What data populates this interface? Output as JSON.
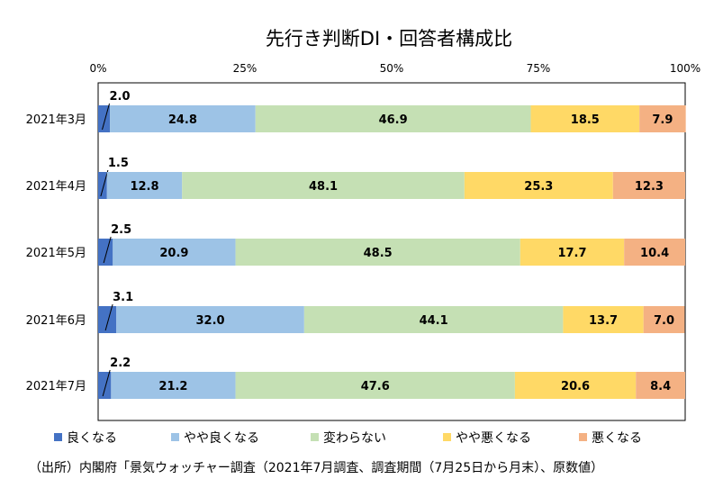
{
  "chart_data": {
    "type": "bar",
    "orientation": "horizontal",
    "stacked": true,
    "title": "先行き判断DI・回答者構成比",
    "x_ticks": [
      "0%",
      "25%",
      "50%",
      "75%",
      "100%"
    ],
    "xlim": [
      0,
      100
    ],
    "categories": [
      "2021年3月",
      "2021年4月",
      "2021年5月",
      "2021年6月",
      "2021年7月"
    ],
    "series": [
      {
        "name": "良くなる",
        "color": "#4472C4",
        "values": [
          2.0,
          1.5,
          2.5,
          3.1,
          2.2
        ]
      },
      {
        "name": "やや良くなる",
        "color": "#9DC3E6",
        "values": [
          24.8,
          12.8,
          20.9,
          32.0,
          21.2
        ]
      },
      {
        "name": "変わらない",
        "color": "#C5E0B4",
        "values": [
          46.9,
          48.1,
          48.5,
          44.1,
          47.6
        ]
      },
      {
        "name": "やや悪くなる",
        "color": "#FFD966",
        "values": [
          18.5,
          25.3,
          17.7,
          13.7,
          20.6
        ]
      },
      {
        "name": "悪くなる",
        "color": "#F4B183",
        "values": [
          7.9,
          12.3,
          10.4,
          7.0,
          8.4
        ]
      }
    ],
    "value_labels": [
      [
        "2.0",
        "24.8",
        "46.9",
        "18.5",
        "7.9"
      ],
      [
        "1.5",
        "12.8",
        "48.1",
        "25.3",
        "12.3"
      ],
      [
        "2.5",
        "20.9",
        "48.5",
        "17.7",
        "10.4"
      ],
      [
        "3.1",
        "32.0",
        "44.1",
        "13.7",
        "7.0"
      ],
      [
        "2.2",
        "21.2",
        "47.6",
        "20.6",
        "8.4"
      ]
    ],
    "legend_position": "bottom",
    "grid": false
  },
  "source_note": "（出所）内閣府「景気ウォッチャー調査（2021年7月調査、調査期間（7月25日から月末）、原数値）"
}
